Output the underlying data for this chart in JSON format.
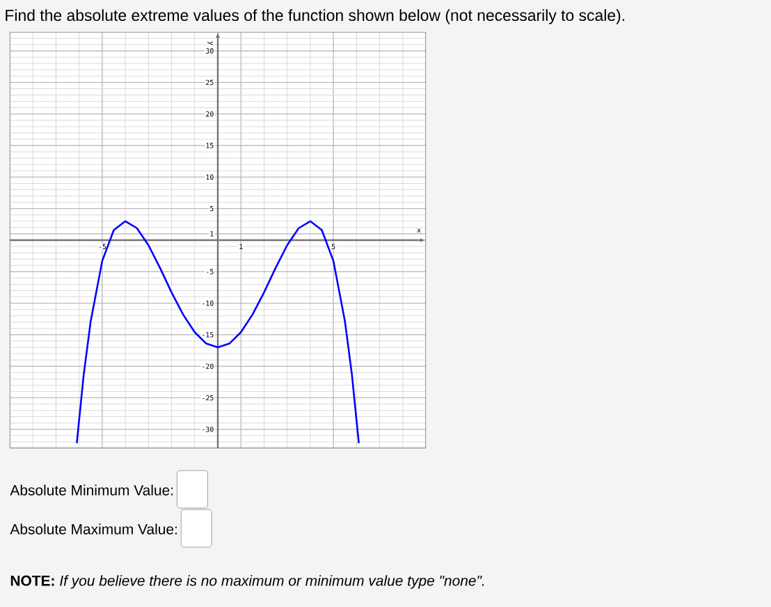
{
  "chart_data": {
    "type": "line",
    "title": "Find the absolute extreme values of the function shown below (not necessarily to scale).",
    "xlabel": "x",
    "ylabel": "y",
    "xlim": [
      -9,
      9
    ],
    "ylim": [
      -33,
      33
    ],
    "xticks": [
      -5,
      1,
      5
    ],
    "yticks": [
      -30,
      -25,
      -20,
      -15,
      -10,
      -5,
      1,
      5,
      10,
      15,
      20,
      25,
      30
    ],
    "grid": true,
    "series": [
      {
        "color": "#0000ff",
        "x": [
          -6.1,
          -5.8,
          -5.5,
          -5,
          -4.5,
          -4,
          -3.5,
          -3,
          -2.5,
          -2,
          -1.5,
          -1,
          -0.5,
          0,
          0.5,
          1,
          1.5,
          2,
          2.5,
          3,
          3.5,
          4,
          4.5,
          5,
          5.5,
          5.8,
          6.1
        ],
        "values": [
          -32.2,
          -21.3,
          -12.9,
          -3.3,
          1.6,
          3,
          1.9,
          -0.8,
          -4.4,
          -8.3,
          -11.8,
          -14.6,
          -16.4,
          -17,
          -16.4,
          -14.6,
          -11.8,
          -8.3,
          -4.4,
          -0.8,
          1.9,
          3,
          1.6,
          -3.3,
          -12.9,
          -21.3,
          -32.2
        ]
      }
    ],
    "annotations": [
      "Absolute Minimum Value:",
      "Absolute Maximum Value:",
      "**NOTE:** *If you believe there is no maximum or minimum value type \"none\".*"
    ]
  }
}
